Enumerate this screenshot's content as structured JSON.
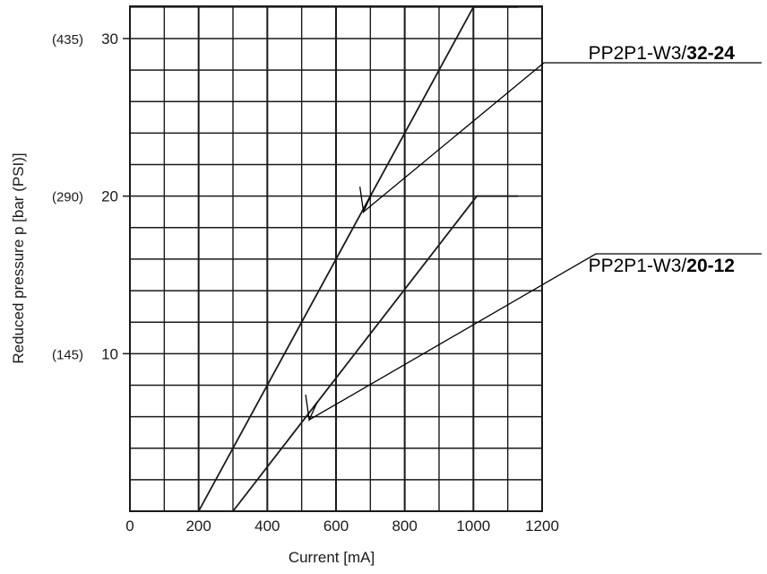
{
  "chart_data": {
    "type": "line",
    "xlabel": "Current [mA]",
    "ylabel": "Reduced pressure p [bar (PSI)]",
    "xlim": [
      0,
      1200
    ],
    "ylim": [
      0,
      30
    ],
    "grid": true,
    "x_ticks": [
      "0",
      "200",
      "400",
      "600",
      "800",
      "1000",
      "1200"
    ],
    "y_ticks": [
      "10",
      "20",
      "30"
    ],
    "y_ticks_secondary": [
      "(145)",
      "(290)",
      "(435)"
    ],
    "series": [
      {
        "name_prefix": "PP2P1-W3/",
        "name_suffix": "32-24",
        "x": [
          200,
          1000,
          1130
        ],
        "y": [
          0,
          32,
          32
        ]
      },
      {
        "name_prefix": "PP2P1-W3/",
        "name_suffix": "20-12",
        "x": [
          300,
          1010,
          1130
        ],
        "y": [
          0,
          20,
          20
        ]
      }
    ],
    "line_color": "#1a1a1a",
    "grid_color": "#1a1a1a"
  }
}
